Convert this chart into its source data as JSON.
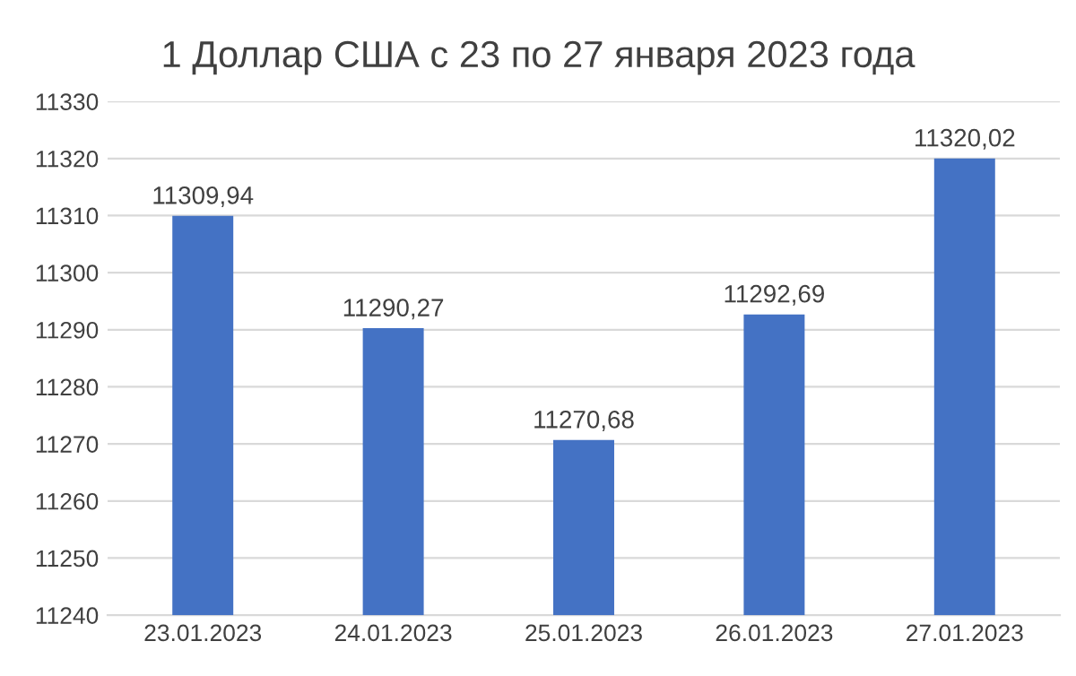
{
  "chart_data": {
    "type": "bar",
    "title": "1 Доллар США с 23 по 27 января 2023 года",
    "categories": [
      "23.01.2023",
      "24.01.2023",
      "25.01.2023",
      "26.01.2023",
      "27.01.2023"
    ],
    "values": [
      11309.94,
      11290.27,
      11270.68,
      11292.69,
      11320.02
    ],
    "value_labels": [
      "11309,94",
      "11290,27",
      "11270,68",
      "11292,69",
      "11320,02"
    ],
    "color": "#4472c4",
    "ylim": [
      11240,
      11330
    ],
    "yticks": [
      11240,
      11250,
      11260,
      11270,
      11280,
      11290,
      11300,
      11310,
      11320,
      11330
    ],
    "grid": "y"
  }
}
